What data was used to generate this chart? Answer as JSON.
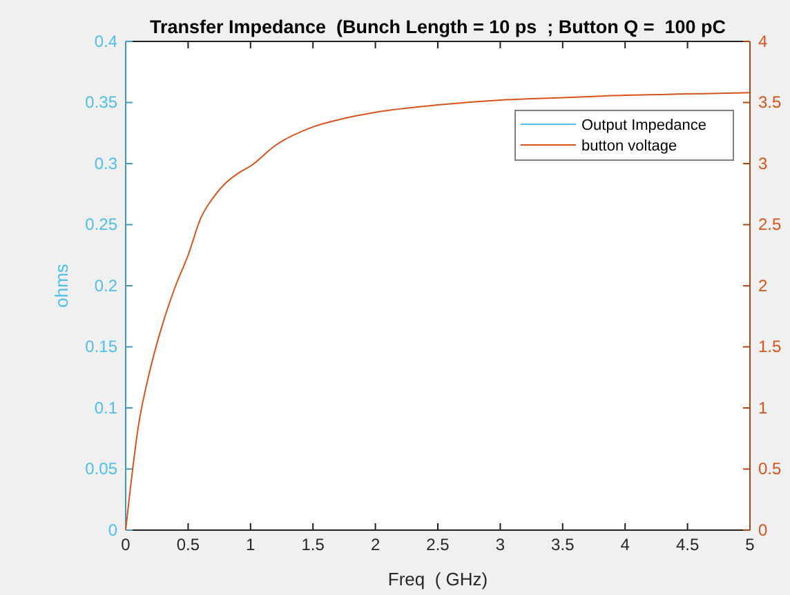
{
  "chart_data": {
    "type": "line",
    "title": "Transfer Impedance  (Bunch Length = 10 ps  ; Button Q =  100 pC",
    "xlabel": "Freq  ( GHz)",
    "ylabel": "ohms",
    "x": [
      0,
      0.1,
      0.2,
      0.3,
      0.4,
      0.5,
      0.6,
      0.7,
      0.8,
      0.9,
      1.0,
      1.2,
      1.5,
      1.75,
      2.0,
      2.5,
      3.0,
      3.5,
      4.0,
      4.5,
      5.0
    ],
    "series": [
      {
        "name": "Output Impedance",
        "color": "#4dbeee",
        "values": [
          null,
          null,
          null,
          null,
          null,
          null,
          null,
          null,
          null,
          null,
          null,
          null,
          null,
          null,
          null,
          null,
          null,
          null,
          null,
          null,
          null
        ]
      },
      {
        "name": "button voltage",
        "color": "#d95319",
        "axis": "y2",
        "values": [
          0,
          0.84,
          1.33,
          1.7,
          2.0,
          2.25,
          2.55,
          2.72,
          2.84,
          2.92,
          2.98,
          3.15,
          3.3,
          3.37,
          3.42,
          3.48,
          3.52,
          3.54,
          3.56,
          3.57,
          3.58
        ]
      }
    ],
    "xlim": [
      0,
      5
    ],
    "xticks": [
      0,
      0.5,
      1,
      1.5,
      2,
      2.5,
      3,
      3.5,
      4,
      4.5,
      5
    ],
    "ylim": [
      0,
      0.4
    ],
    "yticks": [
      0,
      0.05,
      0.1,
      0.15,
      0.2,
      0.25,
      0.3,
      0.35,
      0.4
    ],
    "y2lim": [
      0,
      4
    ],
    "y2ticks": [
      0,
      0.5,
      1,
      1.5,
      2,
      2.5,
      3,
      3.5,
      4
    ],
    "legend": "top right",
    "grid": false
  }
}
